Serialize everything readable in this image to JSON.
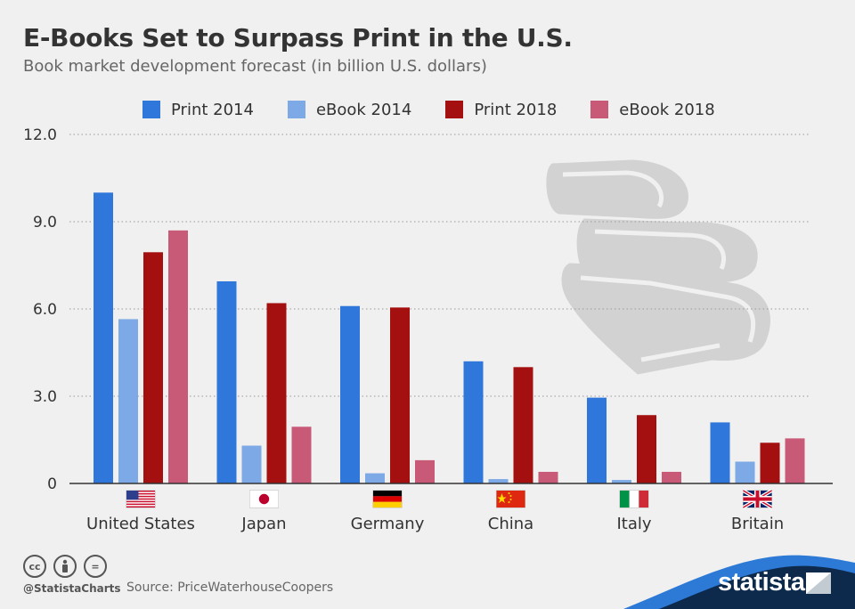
{
  "header": {
    "title": "E-Books Set to Surpass Print in the U.S.",
    "subtitle": "Book market development forecast (in billion U.S. dollars)"
  },
  "legend": [
    {
      "label": "Print 2014",
      "color": "#2f77db"
    },
    {
      "label": "eBook 2014",
      "color": "#7da9e6"
    },
    {
      "label": "Print 2018",
      "color": "#a3100f"
    },
    {
      "label": "eBook 2018",
      "color": "#c85a78"
    }
  ],
  "chart_data": {
    "type": "bar",
    "title": "E-Books Set to Surpass Print in the U.S.",
    "subtitle": "Book market development forecast (in billion U.S. dollars)",
    "categories": [
      "United States",
      "Japan",
      "Germany",
      "China",
      "Italy",
      "Britain"
    ],
    "series": [
      {
        "name": "Print 2014",
        "values": [
          10.0,
          6.95,
          6.1,
          4.2,
          2.95,
          2.1
        ]
      },
      {
        "name": "eBook 2014",
        "values": [
          5.65,
          1.3,
          0.35,
          0.15,
          0.12,
          0.75
        ]
      },
      {
        "name": "Print 2018",
        "values": [
          7.95,
          6.2,
          6.05,
          4.0,
          2.35,
          1.4
        ]
      },
      {
        "name": "eBook 2018",
        "values": [
          8.7,
          1.95,
          0.8,
          0.4,
          0.4,
          1.55
        ]
      }
    ],
    "yticks": [
      "12.0",
      "9.0",
      "6.0",
      "3.0",
      "0"
    ],
    "ylim": [
      0,
      12
    ],
    "grid": true,
    "legend_position": "top"
  },
  "country_flags": [
    "us-flag-icon",
    "japan-flag-icon",
    "germany-flag-icon",
    "china-flag-icon",
    "italy-flag-icon",
    "uk-flag-icon"
  ],
  "footer": {
    "cc_icons": [
      "cc",
      "by",
      "="
    ],
    "handle": "@StatistaCharts",
    "source": "Source: PriceWaterhouseCoopers",
    "brand": "statista"
  }
}
